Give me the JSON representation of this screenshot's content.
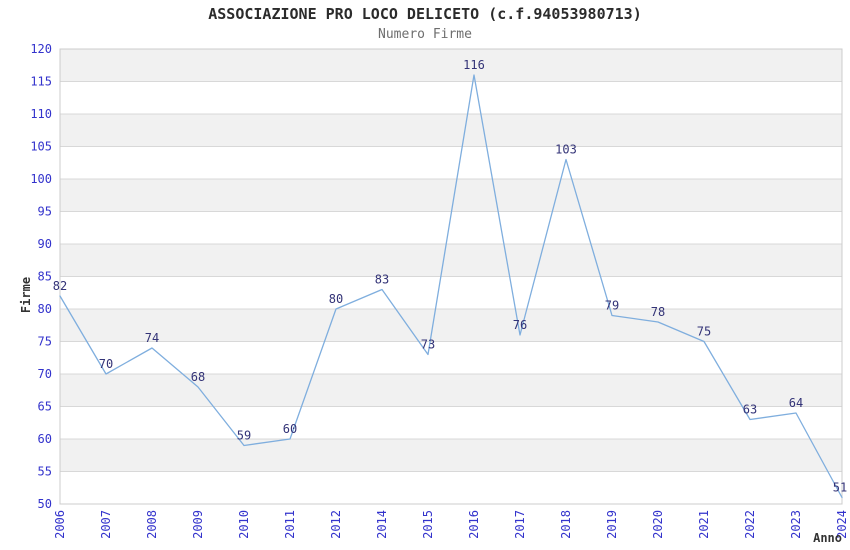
{
  "header": {
    "title": "ASSOCIAZIONE PRO LOCO DELICETO (c.f.94053980713)",
    "subtitle": "Numero Firme"
  },
  "chart_data": {
    "type": "line",
    "title": "ASSOCIAZIONE PRO LOCO DELICETO (c.f.94053980713)",
    "subtitle": "Numero Firme",
    "xlabel": "Anno",
    "ylabel": "Firme",
    "categories": [
      "2006",
      "2007",
      "2008",
      "2009",
      "2010",
      "2011",
      "2012",
      "2014",
      "2015",
      "2016",
      "2017",
      "2018",
      "2019",
      "2020",
      "2021",
      "2022",
      "2023",
      "2024"
    ],
    "values": [
      82,
      70,
      74,
      68,
      59,
      60,
      80,
      83,
      73,
      116,
      76,
      103,
      79,
      78,
      75,
      63,
      64,
      51
    ],
    "ylim": [
      50,
      120
    ],
    "ytick_step": 5,
    "grid": true,
    "banded_background": true,
    "legend": "none",
    "colors": {
      "line": "#7faede",
      "data_label": "#333377",
      "tick_label": "#3333cc",
      "grid_line": "#d8d8d8",
      "band_fill": "#f1f1f1",
      "plot_border": "#cccccc",
      "axis_title": "#333333"
    }
  }
}
